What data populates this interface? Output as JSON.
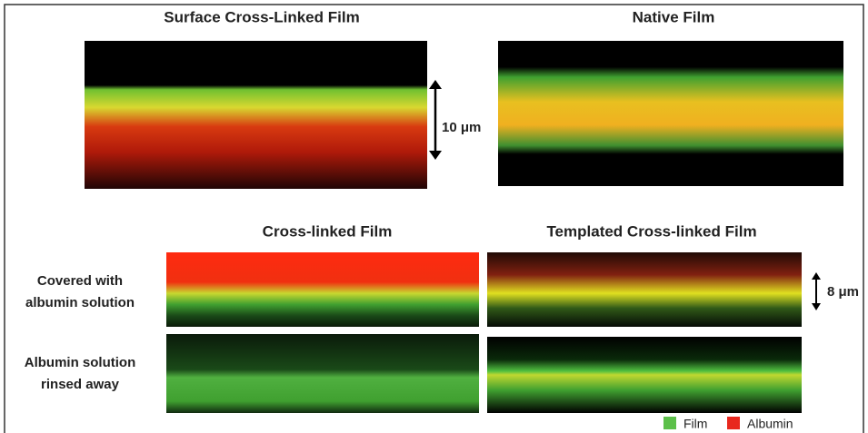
{
  "figure": {
    "top_titles": [
      "Surface Cross-Linked Film",
      "Native Film"
    ],
    "bottom_titles": [
      "Cross-linked Film",
      "Templated Cross-linked Film"
    ],
    "row_labels": [
      [
        "Covered with",
        "albumin solution"
      ],
      [
        "Albumin solution",
        "rinsed away"
      ]
    ],
    "scale_bars": [
      "10 μm",
      "8 μm"
    ],
    "legend": [
      "Film",
      "Albumin"
    ]
  }
}
